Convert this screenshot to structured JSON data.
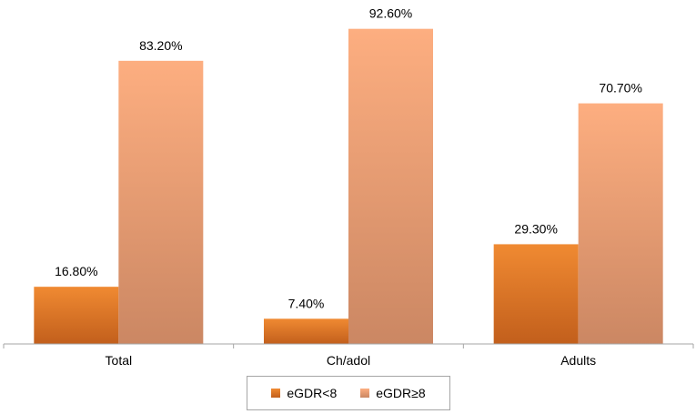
{
  "chart_data": {
    "type": "bar",
    "categories": [
      "Total",
      "Ch/adol",
      "Adults"
    ],
    "series": [
      {
        "name": "eGDR<8",
        "values": [
          16.8,
          7.4,
          29.3
        ],
        "labels": [
          "16.80%",
          "7.40%",
          "29.30%"
        ],
        "color_top": "#f08a32",
        "color_bottom": "#c25f1c"
      },
      {
        "name": "eGDR≥8",
        "values": [
          83.2,
          92.6,
          70.7
        ],
        "labels": [
          "83.20%",
          "92.60%",
          "70.70%"
        ],
        "color_top": "#fdae80",
        "color_bottom": "#cb8763"
      }
    ],
    "ylim": [
      0,
      100
    ],
    "title": "",
    "xlabel": "",
    "ylabel": "",
    "grid": false,
    "legend_position": "bottom"
  }
}
